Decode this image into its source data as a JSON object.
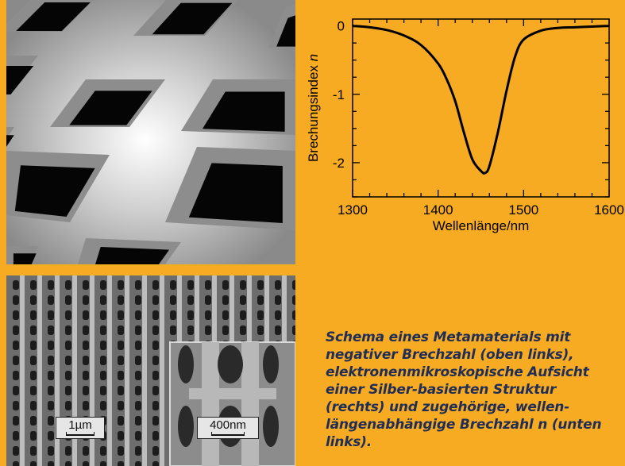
{
  "figure": {
    "caption": "Schema eines Metamaterials mit negativer Brechzahl (oben links), elektronenmikroskopische Aufsicht einer Silber-basierten Struktur (rechts) und zugehörige, wellen-längenabhängige Brechzahl n (unten links).",
    "scale_bar_large": "1µm",
    "scale_bar_small": "400nm"
  },
  "colors": {
    "background": "#f7ab22",
    "caption_text": "#1f2d57",
    "curve": "#000000"
  },
  "chart_data": {
    "type": "line",
    "xlabel": "Wellenlänge/nm",
    "ylabel": "Brechungsindex n",
    "xlim": [
      1300,
      1600
    ],
    "ylim": [
      -2.5,
      0.1
    ],
    "xticks": [
      "1300",
      "1400",
      "1500",
      "1600"
    ],
    "yticks": [
      "0",
      "-1",
      "-2"
    ],
    "grid": false,
    "series": [
      {
        "x": [
          1300,
          1320,
          1340,
          1360,
          1380,
          1400,
          1410,
          1420,
          1430,
          1440,
          1450,
          1455,
          1460,
          1470,
          1480,
          1490,
          1500,
          1520,
          1540,
          1560,
          1580,
          1600
        ],
        "values": [
          0,
          -0.02,
          -0.06,
          -0.14,
          -0.28,
          -0.55,
          -0.78,
          -1.1,
          -1.55,
          -1.95,
          -2.12,
          -2.15,
          -2.05,
          -1.55,
          -0.95,
          -0.45,
          -0.2,
          -0.07,
          -0.03,
          -0.02,
          -0.01,
          0
        ]
      }
    ]
  }
}
